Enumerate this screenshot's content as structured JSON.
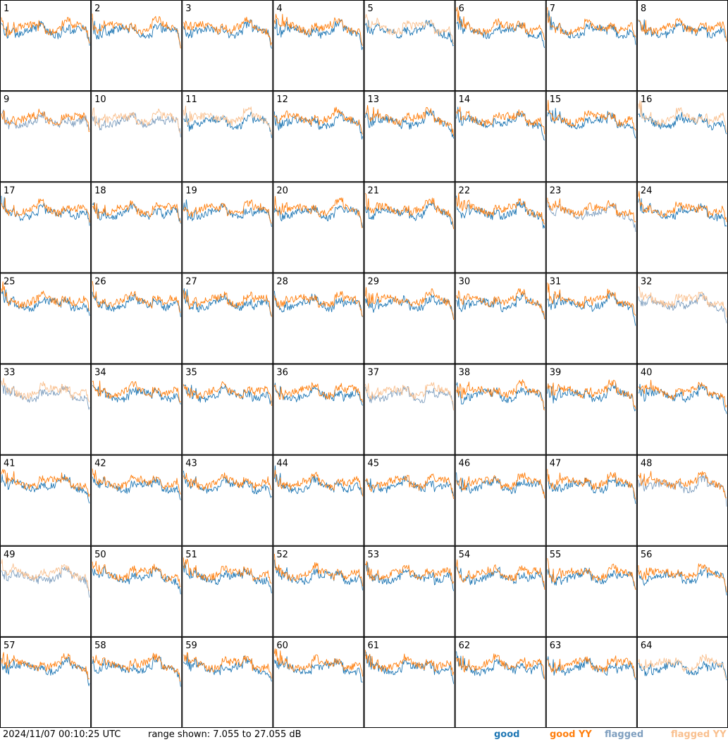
{
  "footer": {
    "timestamp": "2024/11/07 00:10:25 UTC",
    "range_text": "range shown: 7.055 to 27.055 dB"
  },
  "legend": [
    {
      "key": "good_xx",
      "prefix": "good ",
      "pol": "XX",
      "color": "#1f77b4"
    },
    {
      "key": "good_yy",
      "prefix": "good ",
      "pol": "YY",
      "color": "#ff7f0e"
    },
    {
      "key": "flagged_xx",
      "prefix": "flagged ",
      "pol": "XX",
      "color": "#7f9fbf"
    },
    {
      "key": "flagged_yy",
      "prefix": "flagged ",
      "pol": "YY",
      "color": "#f9c08f"
    }
  ],
  "chart_data": {
    "type": "line",
    "grid": {
      "rows": 8,
      "cols": 8
    },
    "ylim": [
      7.055,
      27.055
    ],
    "yunit": "dB",
    "panels": [
      {
        "label": "1",
        "xx": "good",
        "yy": "good"
      },
      {
        "label": "2",
        "xx": "good",
        "yy": "good"
      },
      {
        "label": "3",
        "xx": "good",
        "yy": "good"
      },
      {
        "label": "4",
        "xx": "good",
        "yy": "good"
      },
      {
        "label": "5",
        "xx": "good",
        "yy": "flagged"
      },
      {
        "label": "6",
        "xx": "good",
        "yy": "good"
      },
      {
        "label": "7",
        "xx": "good",
        "yy": "good"
      },
      {
        "label": "8",
        "xx": "good",
        "yy": "good"
      },
      {
        "label": "9",
        "xx": "flagged",
        "yy": "good"
      },
      {
        "label": "10",
        "xx": "flagged",
        "yy": "flagged"
      },
      {
        "label": "11",
        "xx": "good",
        "yy": "flagged"
      },
      {
        "label": "12",
        "xx": "good",
        "yy": "good"
      },
      {
        "label": "13",
        "xx": "good",
        "yy": "good"
      },
      {
        "label": "14",
        "xx": "good",
        "yy": "good"
      },
      {
        "label": "15",
        "xx": "good",
        "yy": "good"
      },
      {
        "label": "16",
        "xx": "good",
        "yy": "flagged"
      },
      {
        "label": "17",
        "xx": "good",
        "yy": "good"
      },
      {
        "label": "18",
        "xx": "good",
        "yy": "good"
      },
      {
        "label": "19",
        "xx": "good",
        "yy": "good"
      },
      {
        "label": "20",
        "xx": "good",
        "yy": "good"
      },
      {
        "label": "21",
        "xx": "good",
        "yy": "good"
      },
      {
        "label": "22",
        "xx": "good",
        "yy": "good"
      },
      {
        "label": "23",
        "xx": "flagged",
        "yy": "good"
      },
      {
        "label": "24",
        "xx": "good",
        "yy": "good"
      },
      {
        "label": "25",
        "xx": "good",
        "yy": "good"
      },
      {
        "label": "26",
        "xx": "good",
        "yy": "good"
      },
      {
        "label": "27",
        "xx": "good",
        "yy": "good"
      },
      {
        "label": "28",
        "xx": "good",
        "yy": "good"
      },
      {
        "label": "29",
        "xx": "good",
        "yy": "good"
      },
      {
        "label": "30",
        "xx": "good",
        "yy": "good"
      },
      {
        "label": "31",
        "xx": "good",
        "yy": "good"
      },
      {
        "label": "32",
        "xx": "flagged",
        "yy": "flagged"
      },
      {
        "label": "33",
        "xx": "flagged",
        "yy": "flagged"
      },
      {
        "label": "34",
        "xx": "good",
        "yy": "good"
      },
      {
        "label": "35",
        "xx": "good",
        "yy": "good"
      },
      {
        "label": "36",
        "xx": "good",
        "yy": "good"
      },
      {
        "label": "37",
        "xx": "flagged",
        "yy": "flagged"
      },
      {
        "label": "38",
        "xx": "good",
        "yy": "good"
      },
      {
        "label": "39",
        "xx": "good",
        "yy": "good"
      },
      {
        "label": "40",
        "xx": "good",
        "yy": "good"
      },
      {
        "label": "41",
        "xx": "good",
        "yy": "good"
      },
      {
        "label": "42",
        "xx": "good",
        "yy": "good"
      },
      {
        "label": "43",
        "xx": "good",
        "yy": "good"
      },
      {
        "label": "44",
        "xx": "good",
        "yy": "good"
      },
      {
        "label": "45",
        "xx": "good",
        "yy": "good"
      },
      {
        "label": "46",
        "xx": "good",
        "yy": "good"
      },
      {
        "label": "47",
        "xx": "good",
        "yy": "good"
      },
      {
        "label": "48",
        "xx": "flagged",
        "yy": "good"
      },
      {
        "label": "49",
        "xx": "flagged",
        "yy": "flagged"
      },
      {
        "label": "50",
        "xx": "good",
        "yy": "good"
      },
      {
        "label": "51",
        "xx": "good",
        "yy": "good"
      },
      {
        "label": "52",
        "xx": "good",
        "yy": "good"
      },
      {
        "label": "53",
        "xx": "good",
        "yy": "good"
      },
      {
        "label": "54",
        "xx": "good",
        "yy": "good"
      },
      {
        "label": "55",
        "xx": "good",
        "yy": "good"
      },
      {
        "label": "56",
        "xx": "good",
        "yy": "good"
      },
      {
        "label": "57",
        "xx": "good",
        "yy": "good"
      },
      {
        "label": "58",
        "xx": "good",
        "yy": "good"
      },
      {
        "label": "59",
        "xx": "good",
        "yy": "good"
      },
      {
        "label": "60",
        "xx": "good",
        "yy": "good"
      },
      {
        "label": "61",
        "xx": "good",
        "yy": "good"
      },
      {
        "label": "62",
        "xx": "good",
        "yy": "good"
      },
      {
        "label": "63",
        "xx": "good",
        "yy": "good"
      },
      {
        "label": "64",
        "xx": "good",
        "yy": "flagged"
      }
    ]
  }
}
